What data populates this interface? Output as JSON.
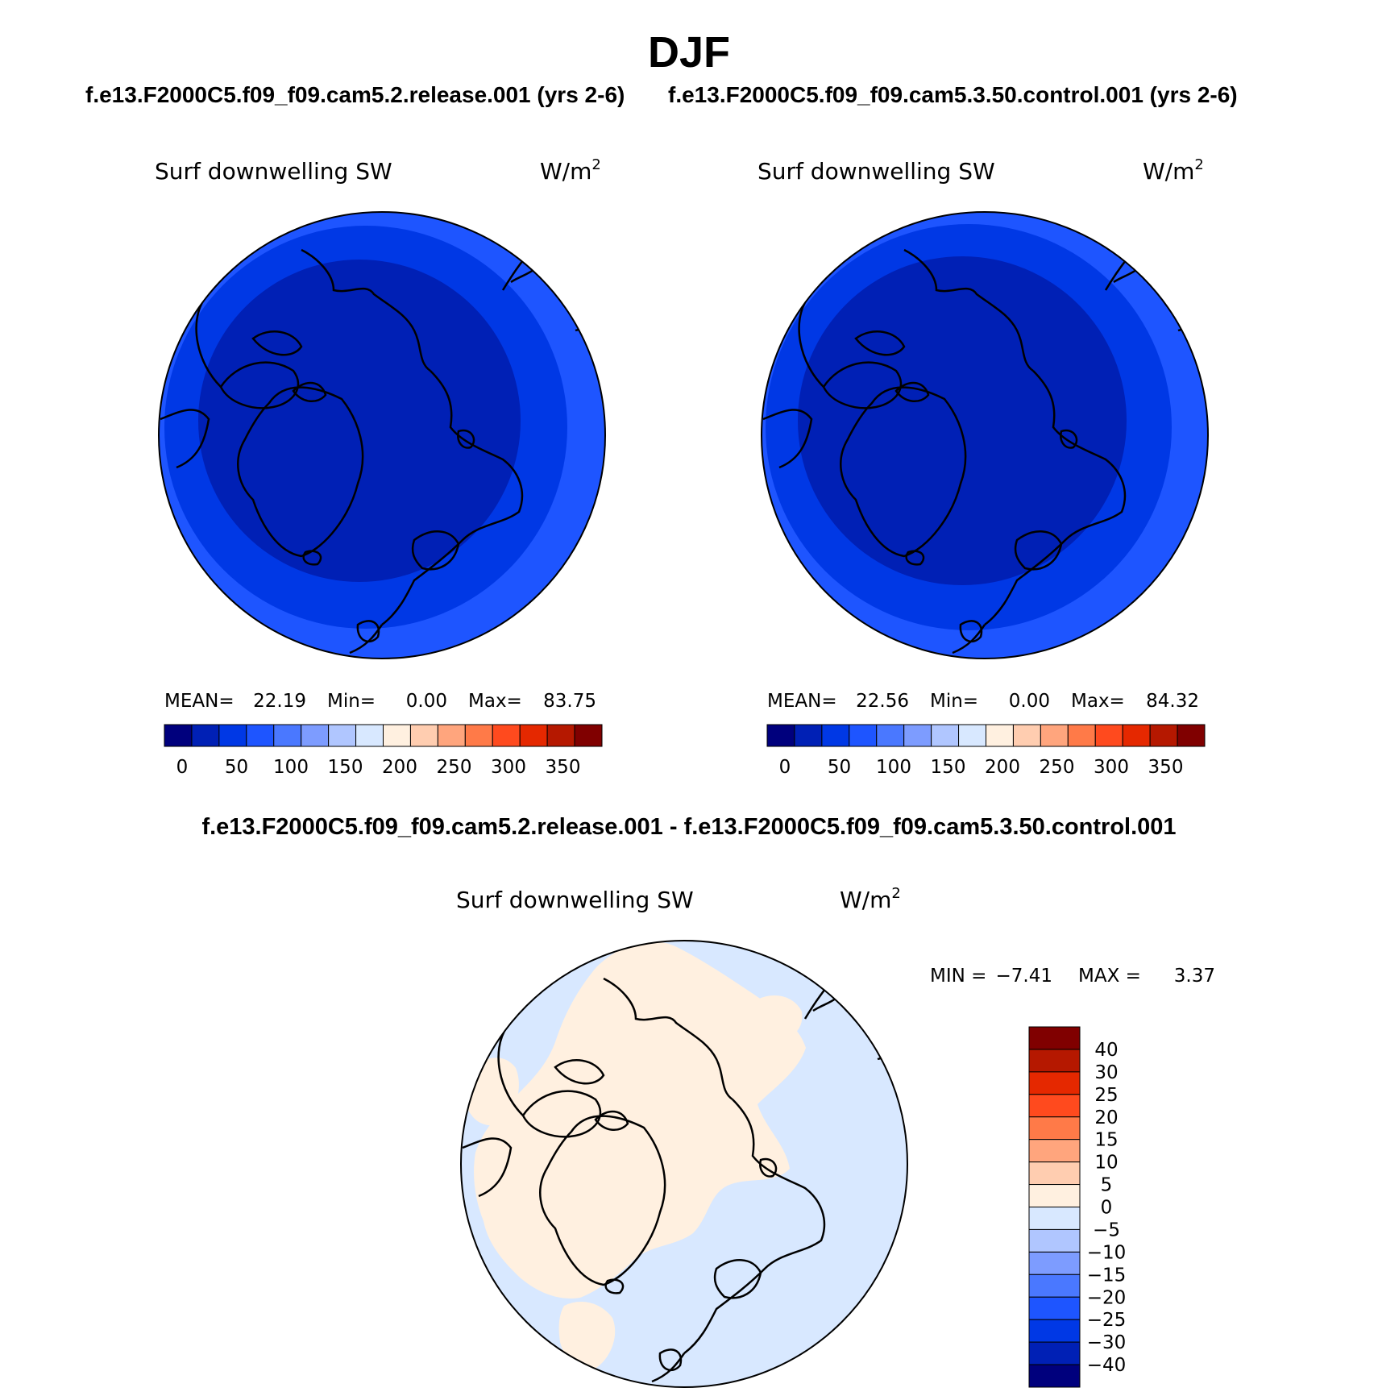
{
  "season": "DJF",
  "case_titles": [
    "f.e13.F2000C5.f09_f09.cam5.2.release.001 (yrs 2-6)",
    "f.e13.F2000C5.f09_f09.cam5.3.50.control.001 (yrs 2-6)"
  ],
  "diff_title": "f.e13.F2000C5.f09_f09.cam5.2.release.001 - f.e13.F2000C5.f09_f09.cam5.3.50.control.001",
  "panels": [
    {
      "variable": "Surf downwelling SW",
      "units": "W/m",
      "units_sup": "2",
      "stats": {
        "mean_label": "MEAN=",
        "mean": "22.19",
        "min_label": "Min=",
        "min": "0.00",
        "max_label": "Max=",
        "max": "83.75"
      }
    },
    {
      "variable": "Surf downwelling SW",
      "units": "W/m",
      "units_sup": "2",
      "stats": {
        "mean_label": "MEAN=",
        "mean": "22.56",
        "min_label": "Min=",
        "min": "0.00",
        "max_label": "Max=",
        "max": "84.32"
      }
    }
  ],
  "diff_panel": {
    "variable": "Surf downwelling SW",
    "units": "W/m",
    "units_sup": "2",
    "min_label": "MIN =",
    "min": "−7.41",
    "max_label": "MAX =",
    "max": "3.37"
  },
  "horizontal_colorbar": {
    "colors": [
      "#00007d",
      "#0020b5",
      "#0038e5",
      "#1e55ff",
      "#4a78ff",
      "#7d9cff",
      "#b0c6ff",
      "#d8e8ff",
      "#fff0e0",
      "#ffcdb0",
      "#ffa57d",
      "#ff7a48",
      "#ff4a1e",
      "#e52800",
      "#b51800",
      "#800000"
    ],
    "tick_labels": [
      "0",
      "50",
      "100",
      "150",
      "200",
      "250",
      "300",
      "350"
    ]
  },
  "vertical_colorbar": {
    "colors": [
      "#800000",
      "#b51800",
      "#e52800",
      "#ff4a1e",
      "#ff7a48",
      "#ffa57d",
      "#ffcdb0",
      "#fff0e0",
      "#d8e8ff",
      "#b0c6ff",
      "#7d9cff",
      "#4a78ff",
      "#1e55ff",
      "#0038e5",
      "#0020b5",
      "#00007d"
    ],
    "tick_labels": [
      "40",
      "30",
      "25",
      "20",
      "15",
      "10",
      "5",
      "0",
      "−5",
      "−10",
      "−15",
      "−20",
      "−25",
      "−30",
      "−40"
    ]
  },
  "map_fill_colors": {
    "abs_outer": "#1e55ff",
    "abs_mid": "#0038e5",
    "abs_inner": "#0020b5",
    "diff_negative": "#d8e8ff",
    "diff_positive": "#fff0e0"
  }
}
